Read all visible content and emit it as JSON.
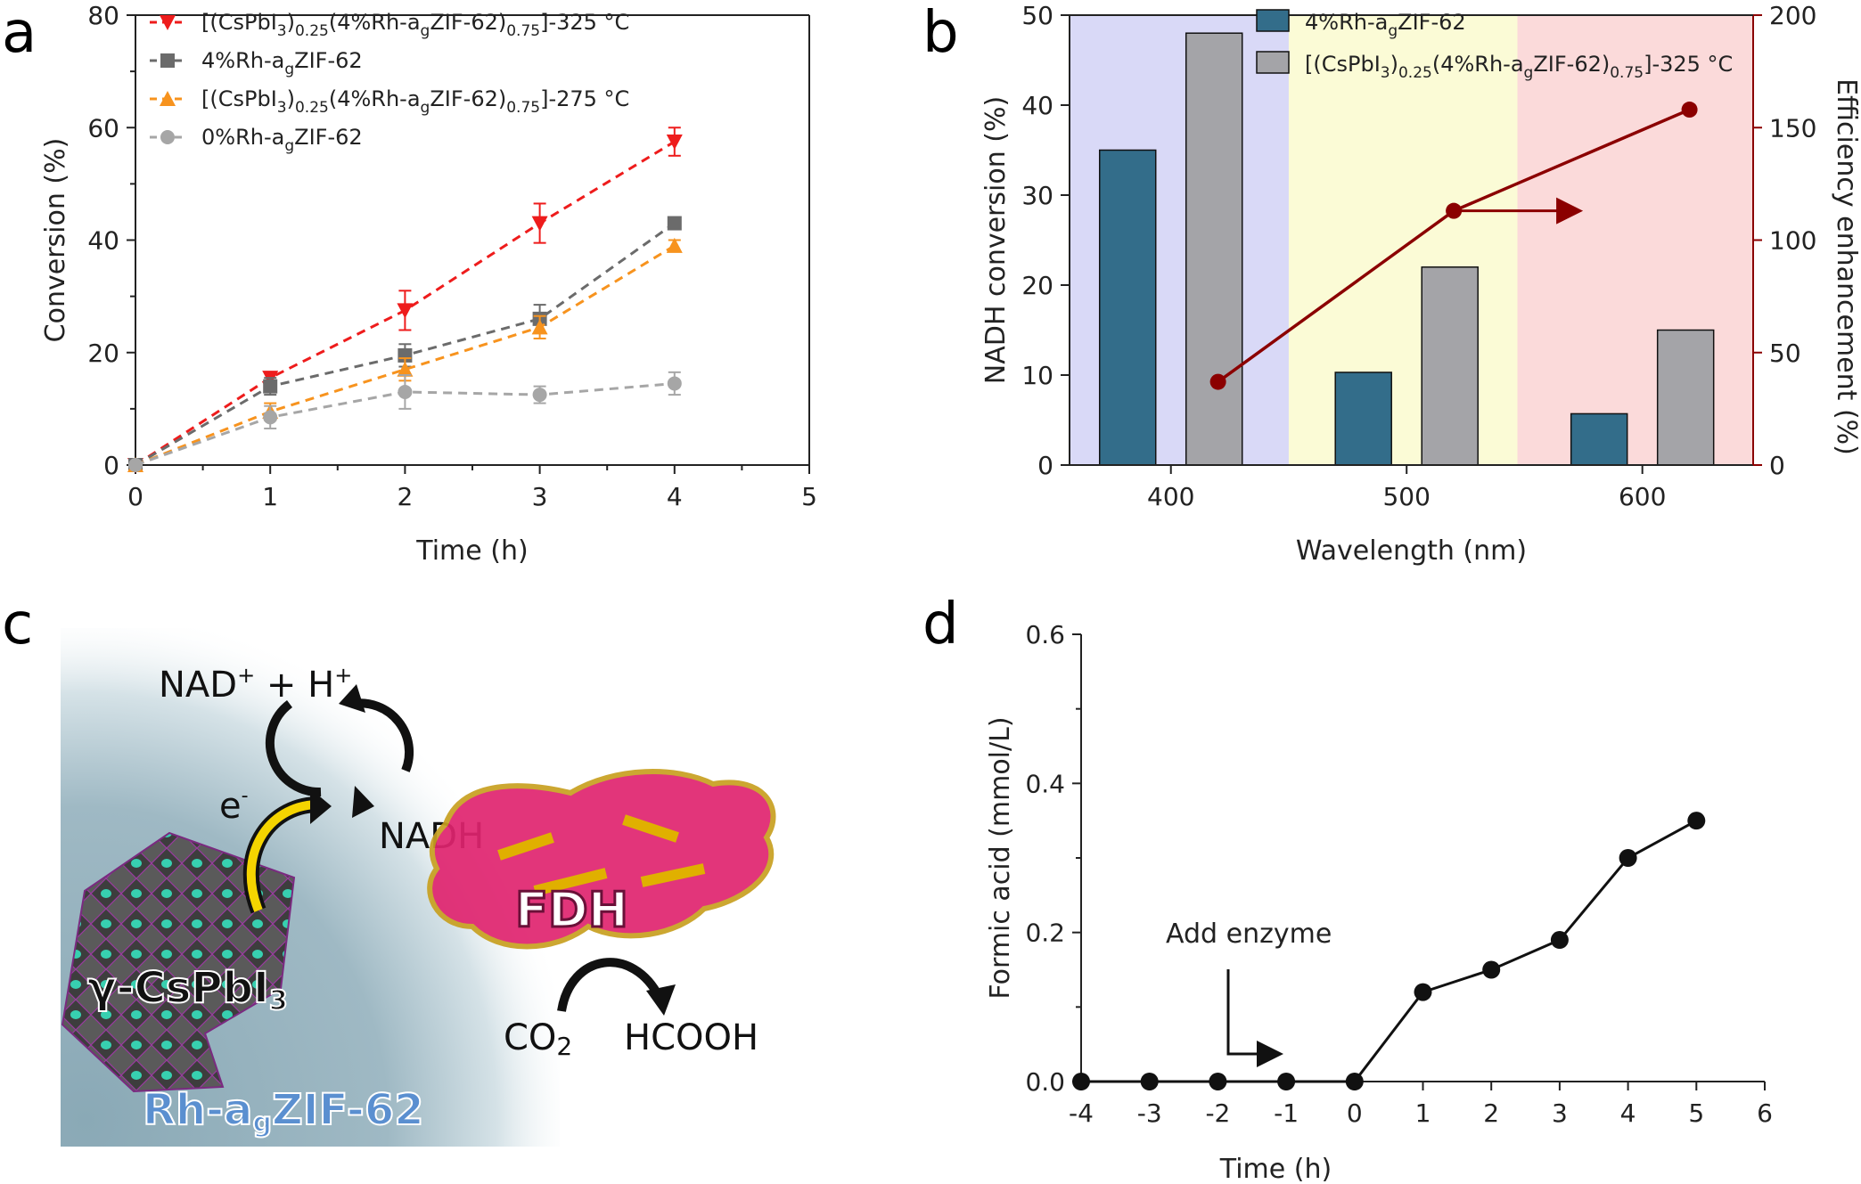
{
  "panels": {
    "a": "a",
    "b": "b",
    "c": "c",
    "d": "d"
  },
  "colors": {
    "red": "#ee1c1c",
    "dark_gray": "#6b6b6b",
    "orange": "#f7931e",
    "light_gray": "#a6a6a6",
    "teal_bar": "#336d8a",
    "gray_bar": "#a4a4a8",
    "dark_red": "#8b0000",
    "violet_band": "#d9d9f7",
    "yellow_band": "#fbfbd6",
    "pink_band": "#fbdada"
  },
  "chart_data": [
    {
      "id": "a",
      "type": "line",
      "xlabel": "Time (h)",
      "ylabel": "Conversion (%)",
      "xlim": [
        0,
        5
      ],
      "ylim": [
        0,
        80
      ],
      "xticks": [
        "0",
        "1",
        "2",
        "3",
        "4",
        "5"
      ],
      "yticks": [
        "0",
        "20",
        "40",
        "60",
        "80"
      ],
      "legend_position": "top-left",
      "series": [
        {
          "name": "[(CsPbI3)0.25(4%Rh-agZIF-62)0.75]-325 °C",
          "marker": "triangle-down",
          "color": "#ee1c1c",
          "x": [
            0,
            1,
            2,
            3,
            4
          ],
          "y": [
            0,
            15.5,
            27.5,
            43,
            57.5
          ],
          "err": [
            0,
            1,
            3.5,
            3.5,
            2.5
          ]
        },
        {
          "name": "4%Rh-agZIF-62",
          "marker": "square",
          "color": "#6b6b6b",
          "x": [
            0,
            1,
            2,
            3,
            4
          ],
          "y": [
            0,
            14,
            19.5,
            26,
            43
          ],
          "err": [
            0,
            1.5,
            2,
            2.5,
            1
          ]
        },
        {
          "name": "[(CsPbI3)0.25(4%Rh-agZIF-62)0.75]-275 °C",
          "marker": "triangle-up",
          "color": "#f7931e",
          "x": [
            0,
            1,
            2,
            3,
            4
          ],
          "y": [
            0,
            9.5,
            17,
            24.5,
            39
          ],
          "err": [
            0,
            1.5,
            2,
            2,
            1
          ]
        },
        {
          "name": "0%Rh-agZIF-62",
          "marker": "circle",
          "color": "#a6a6a6",
          "x": [
            0,
            1,
            2,
            3,
            4
          ],
          "y": [
            0,
            8.5,
            13,
            12.5,
            14.5
          ],
          "err": [
            0,
            2,
            3,
            1.5,
            2
          ]
        }
      ],
      "legend": [
        {
          "main": "[(CsPbI",
          "sub1": "3",
          "mid1": ")",
          "sub2": "0.25",
          "mid2": "(4%Rh-a",
          "sub3": "g",
          "mid3": "ZIF-62)",
          "sub4": "0.75",
          "tail": "]-325 °C"
        },
        {
          "main": "4%Rh-a",
          "sub1": "g",
          "tail": "ZIF-62"
        },
        {
          "main": "[(CsPbI",
          "sub1": "3",
          "mid1": ")",
          "sub2": "0.25",
          "mid2": "(4%Rh-a",
          "sub3": "g",
          "mid3": "ZIF-62)",
          "sub4": "0.75",
          "tail": "]-275 °C"
        },
        {
          "main": "0%Rh-a",
          "sub1": "g",
          "tail": "ZIF-62"
        }
      ]
    },
    {
      "id": "b",
      "type": "bar",
      "xlabel": "Wavelength (nm)",
      "ylabel": "NADH conversion (%)",
      "y2label": "Efficiency enhancement (%)",
      "xticks": [
        "400",
        "500",
        "600"
      ],
      "yticks": [
        "0",
        "10",
        "20",
        "30",
        "40",
        "50"
      ],
      "y2ticks": [
        "0",
        "50",
        "100",
        "150",
        "200"
      ],
      "ylim": [
        0,
        50
      ],
      "y2lim": [
        0,
        200
      ],
      "xlim": [
        357,
        647
      ],
      "bands": [
        {
          "from": 357,
          "to": 450,
          "color": "#d9d9f7"
        },
        {
          "from": 450,
          "to": 547,
          "color": "#fbfbd6"
        },
        {
          "from": 547,
          "to": 647,
          "color": "#fbdada"
        }
      ],
      "categories": [
        "400",
        "500",
        "600"
      ],
      "group_centers": [
        400,
        500,
        600
      ],
      "series": [
        {
          "name": "4%Rh-agZIF-62",
          "color": "#336d8a",
          "values": [
            35,
            10.3,
            5.7
          ]
        },
        {
          "name": "[(CsPbI3)0.25(4%Rh-agZIF-62)0.75]-325 °C",
          "color": "#a4a4a8",
          "values": [
            48,
            22,
            15
          ]
        }
      ],
      "enhancement": {
        "x": [
          420,
          520,
          620
        ],
        "y": [
          37,
          113,
          158
        ],
        "color": "#8b0000"
      },
      "legend_position": "top",
      "legend": [
        {
          "main": "4%Rh-a",
          "sub1": "g",
          "tail": "ZIF-62"
        },
        {
          "main": "[(CsPbI",
          "sub1": "3",
          "mid1": ")",
          "sub2": "0.25",
          "mid2": "(4%Rh-a",
          "sub3": "g",
          "mid3": "ZIF-62)",
          "sub4": "0.75",
          "tail": "]-325 °C"
        }
      ]
    },
    {
      "id": "d",
      "type": "line",
      "xlabel": "Time (h)",
      "ylabel": "Formic acid (mmol/L)",
      "xlim": [
        -4,
        6
      ],
      "ylim": [
        0,
        0.6
      ],
      "xticks": [
        "-4",
        "-3",
        "-2",
        "-1",
        "0",
        "1",
        "2",
        "3",
        "4",
        "5",
        "6"
      ],
      "yticks": [
        "0.0",
        "0.2",
        "0.4",
        "0.6"
      ],
      "series": [
        {
          "x": [
            -4,
            -3,
            -2,
            -1,
            0,
            1,
            2,
            3,
            4,
            5
          ],
          "y": [
            0,
            0,
            0,
            0,
            0,
            0.12,
            0.15,
            0.19,
            0.3,
            0.35
          ]
        }
      ],
      "annotation": "Add enzyme"
    }
  ],
  "scheme": {
    "nad_text": "NAD",
    "nad_sup": "+",
    "plus_text": " + H",
    "h_sup": "+",
    "nadh": "NADH",
    "electron": "e",
    "electron_sup": "-",
    "fdh": "FDH",
    "co2": "CO",
    "co2_sub": "2",
    "hcooh": "HCOOH",
    "cspbi3": "γ-CsPbI",
    "cspbi3_sub": "3",
    "zif": "Rh-a",
    "zif_sub": "g",
    "zif_tail": "ZIF-62"
  }
}
